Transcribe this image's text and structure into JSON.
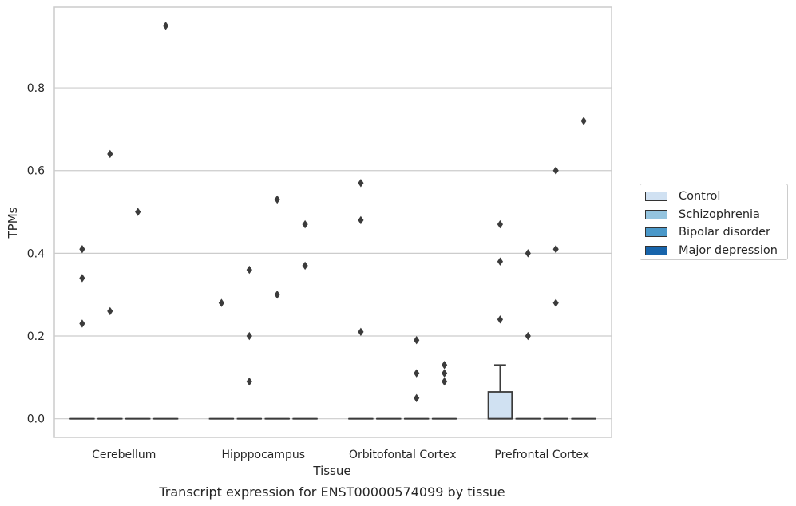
{
  "chart_data": {
    "type": "box",
    "caption": "Transcript expression for ENST00000574099 by tissue",
    "xlabel": "Tissue",
    "ylabel": "TPMs",
    "ylim": [
      -0.045,
      0.995
    ],
    "yticks": [
      0.0,
      0.2,
      0.4,
      0.6,
      0.8
    ],
    "ytick_labels": [
      "0.0",
      "0.2",
      "0.4",
      "0.6",
      "0.8"
    ],
    "grid": "horizontal",
    "legend_position": "right",
    "categories": [
      "Cerebellum",
      "Hipppocampus",
      "Orbitofontal Cortex",
      "Prefrontal Cortex"
    ],
    "series": [
      {
        "name": "Control",
        "color": "#d0e1f2"
      },
      {
        "name": "Schizophrenia",
        "color": "#94c4df"
      },
      {
        "name": "Bipolar disorder",
        "color": "#4a98c9"
      },
      {
        "name": "Major depression",
        "color": "#1764ab"
      }
    ],
    "boxes": [
      {
        "category": 0,
        "series": 0,
        "q1": 0,
        "median": 0,
        "q3": 0,
        "whisker_low": 0,
        "whisker_high": 0,
        "outliers": [
          0.23,
          0.34,
          0.41
        ]
      },
      {
        "category": 0,
        "series": 1,
        "q1": 0,
        "median": 0,
        "q3": 0,
        "whisker_low": 0,
        "whisker_high": 0,
        "outliers": [
          0.26,
          0.64
        ]
      },
      {
        "category": 0,
        "series": 2,
        "q1": 0,
        "median": 0,
        "q3": 0,
        "whisker_low": 0,
        "whisker_high": 0,
        "outliers": [
          0.5
        ]
      },
      {
        "category": 0,
        "series": 3,
        "q1": 0,
        "median": 0,
        "q3": 0,
        "whisker_low": 0,
        "whisker_high": 0,
        "outliers": [
          0.95
        ]
      },
      {
        "category": 1,
        "series": 0,
        "q1": 0,
        "median": 0,
        "q3": 0,
        "whisker_low": 0,
        "whisker_high": 0,
        "outliers": [
          0.28
        ]
      },
      {
        "category": 1,
        "series": 1,
        "q1": 0,
        "median": 0,
        "q3": 0,
        "whisker_low": 0,
        "whisker_high": 0,
        "outliers": [
          0.09,
          0.2,
          0.36
        ]
      },
      {
        "category": 1,
        "series": 2,
        "q1": 0,
        "median": 0,
        "q3": 0,
        "whisker_low": 0,
        "whisker_high": 0,
        "outliers": [
          0.3,
          0.53
        ]
      },
      {
        "category": 1,
        "series": 3,
        "q1": 0,
        "median": 0,
        "q3": 0,
        "whisker_low": 0,
        "whisker_high": 0,
        "outliers": [
          0.37,
          0.47
        ]
      },
      {
        "category": 2,
        "series": 0,
        "q1": 0,
        "median": 0,
        "q3": 0,
        "whisker_low": 0,
        "whisker_high": 0,
        "outliers": [
          0.21,
          0.48,
          0.57
        ]
      },
      {
        "category": 2,
        "series": 1,
        "q1": 0,
        "median": 0,
        "q3": 0,
        "whisker_low": 0,
        "whisker_high": 0,
        "outliers": []
      },
      {
        "category": 2,
        "series": 2,
        "q1": 0,
        "median": 0,
        "q3": 0,
        "whisker_low": 0,
        "whisker_high": 0,
        "outliers": [
          0.05,
          0.11,
          0.19
        ]
      },
      {
        "category": 2,
        "series": 3,
        "q1": 0,
        "median": 0,
        "q3": 0,
        "whisker_low": 0,
        "whisker_high": 0,
        "outliers": [
          0.09,
          0.11,
          0.13
        ]
      },
      {
        "category": 3,
        "series": 0,
        "q1": 0,
        "median": 0,
        "q3": 0.065,
        "whisker_low": 0,
        "whisker_high": 0.13,
        "outliers": [
          0.24,
          0.38,
          0.47
        ]
      },
      {
        "category": 3,
        "series": 1,
        "q1": 0,
        "median": 0,
        "q3": 0,
        "whisker_low": 0,
        "whisker_high": 0,
        "outliers": [
          0.2,
          0.4
        ]
      },
      {
        "category": 3,
        "series": 2,
        "q1": 0,
        "median": 0,
        "q3": 0,
        "whisker_low": 0,
        "whisker_high": 0,
        "outliers": [
          0.28,
          0.41,
          0.6
        ]
      },
      {
        "category": 3,
        "series": 3,
        "q1": 0,
        "median": 0,
        "q3": 0,
        "whisker_low": 0,
        "whisker_high": 0,
        "outliers": [
          0.72
        ]
      }
    ]
  }
}
